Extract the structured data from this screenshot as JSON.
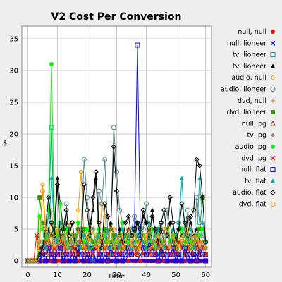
{
  "chart_data": {
    "type": "line",
    "title": "V2 Cost Per Conversion",
    "xlabel": "Time",
    "ylabel": "$",
    "xlim": [
      -2,
      62
    ],
    "ylim": [
      -1,
      37
    ],
    "xticks": [
      0,
      10,
      20,
      30,
      40,
      50,
      60
    ],
    "yticks": [
      0,
      5,
      10,
      15,
      20,
      25,
      30,
      35
    ],
    "grid": true,
    "legend": "right",
    "series": [
      {
        "name": "null, null",
        "color": "#ff0000",
        "marker": "filled-circle",
        "values": [
          0,
          0,
          0,
          0,
          0,
          0,
          0,
          0,
          0,
          0,
          0,
          0,
          0,
          0,
          0,
          0,
          0,
          0,
          0,
          0,
          0,
          0,
          0,
          0,
          0,
          0,
          0,
          0,
          0,
          0,
          0,
          0,
          0,
          0,
          0,
          0,
          0,
          0,
          0,
          0,
          0,
          0,
          0,
          0,
          0,
          0,
          0,
          0,
          0,
          0,
          0,
          0,
          0,
          0,
          0,
          0,
          0,
          0,
          0,
          0,
          0
        ]
      },
      {
        "name": "null, lioneer",
        "color": "#0000ff",
        "marker": "x",
        "values": [
          0,
          0,
          0,
          0,
          0,
          1,
          0,
          0,
          1,
          0,
          2,
          1,
          0,
          1,
          0,
          0,
          0,
          1,
          0,
          0,
          1,
          0,
          1,
          0,
          0,
          0,
          0,
          1,
          0,
          0,
          0,
          0,
          0,
          0,
          1,
          0,
          0,
          0,
          1,
          0,
          0,
          0,
          0,
          0,
          1,
          0,
          1,
          0,
          0,
          0,
          0,
          0,
          0,
          1,
          0,
          0,
          0,
          1,
          0,
          0,
          0
        ]
      },
      {
        "name": "tv, lioneer",
        "color": "#009999",
        "marker": "open-square",
        "values": [
          0,
          0,
          0,
          0,
          0,
          2,
          4,
          7,
          21,
          3,
          5,
          2,
          1,
          2,
          3,
          1,
          0,
          2,
          1,
          3,
          2,
          1,
          0,
          3,
          2,
          1,
          2,
          0,
          1,
          4,
          2,
          3,
          1,
          2,
          1,
          3,
          2,
          4,
          3,
          1,
          2,
          1,
          3,
          2,
          1,
          2,
          3,
          1,
          2,
          4,
          1,
          2,
          3,
          1,
          2,
          1,
          3,
          2,
          1,
          2,
          1
        ]
      },
      {
        "name": "tv, lioneer",
        "color": "#000000",
        "marker": "filled-triangle",
        "values": [
          0,
          0,
          0,
          0,
          1,
          3,
          2,
          5,
          4,
          6,
          13,
          9,
          5,
          6,
          3,
          4,
          2,
          1,
          4,
          5,
          3,
          6,
          8,
          13,
          4,
          2,
          5,
          3,
          6,
          4,
          2,
          5,
          3,
          4,
          5,
          2,
          3,
          6,
          4,
          7,
          6,
          3,
          8,
          4,
          2,
          5,
          3,
          4,
          6,
          3,
          2,
          5,
          4,
          3,
          7,
          6,
          4,
          5,
          3,
          2,
          3
        ]
      },
      {
        "name": "audio, null",
        "color": "#ff9900",
        "marker": "open-diamond",
        "values": [
          0,
          0,
          0,
          0,
          2,
          12,
          6,
          3,
          8,
          4,
          2,
          5,
          3,
          4,
          6,
          2,
          1,
          8,
          14,
          3,
          2,
          5,
          3,
          4,
          2,
          9,
          7,
          3,
          2,
          5,
          3,
          1,
          4,
          2,
          3,
          4,
          2,
          1,
          3,
          2,
          4,
          5,
          3,
          2,
          4,
          3,
          5,
          2,
          3,
          4,
          2,
          3,
          5,
          4,
          3,
          2,
          4,
          3,
          2,
          3,
          2
        ]
      },
      {
        "name": "audio, lioneer",
        "color": "#558888",
        "marker": "open-circle",
        "values": [
          0,
          0,
          0,
          0,
          1,
          3,
          2,
          8,
          6,
          4,
          3,
          5,
          2,
          9,
          4,
          6,
          3,
          2,
          5,
          16,
          10,
          5,
          3,
          2,
          11,
          9,
          16,
          4,
          5,
          21,
          14,
          8,
          6,
          3,
          4,
          5,
          7,
          6,
          3,
          5,
          9,
          4,
          3,
          2,
          5,
          6,
          4,
          8,
          3,
          2,
          4,
          6,
          5,
          4,
          8,
          3,
          2,
          10,
          6,
          4,
          3
        ]
      },
      {
        "name": "dvd, null",
        "color": "#ff7733",
        "marker": "plus",
        "values": [
          0,
          0,
          0,
          0,
          1,
          2,
          3,
          1,
          2,
          3,
          2,
          1,
          2,
          3,
          1,
          2,
          1,
          3,
          2,
          1,
          2,
          1,
          3,
          2,
          1,
          2,
          1,
          3,
          2,
          1,
          2,
          3,
          1,
          2,
          1,
          3,
          2,
          1,
          2,
          3,
          1,
          2,
          1,
          2,
          3,
          2,
          1,
          2,
          3,
          1,
          2,
          1,
          3,
          2,
          1,
          2,
          1,
          2,
          3,
          2,
          1
        ]
      },
      {
        "name": "dvd, lioneer",
        "color": "#339900",
        "marker": "filled-square",
        "values": [
          0,
          0,
          0,
          0,
          10,
          6,
          3,
          4,
          2,
          5,
          3,
          6,
          4,
          2,
          5,
          3,
          4,
          2,
          3,
          5,
          2,
          4,
          3,
          2,
          4,
          3,
          5,
          2,
          3,
          4,
          2,
          3,
          2,
          4,
          3,
          2,
          5,
          3,
          4,
          2,
          3,
          4,
          2,
          3,
          5,
          2,
          3,
          4,
          3,
          2,
          4,
          3,
          2,
          3,
          4,
          2,
          3,
          4,
          5,
          10,
          3
        ]
      },
      {
        "name": "null, pg",
        "color": "#993333",
        "marker": "open-triangle",
        "values": [
          0,
          0,
          0,
          0,
          1,
          2,
          1,
          3,
          2,
          1,
          2,
          3,
          1,
          2,
          1,
          2,
          3,
          1,
          2,
          1,
          3,
          2,
          1,
          2,
          1,
          3,
          2,
          1,
          2,
          3,
          1,
          2,
          1,
          2,
          3,
          1,
          2,
          1,
          3,
          2,
          1,
          2,
          3,
          1,
          2,
          1,
          3,
          2,
          1,
          2,
          3,
          1,
          2,
          1,
          2,
          3,
          1,
          2,
          1,
          2,
          1
        ]
      },
      {
        "name": "tv, pg",
        "color": "#888888",
        "marker": "filled-diamond",
        "values": [
          0,
          0,
          0,
          0,
          1,
          2,
          3,
          2,
          1,
          3,
          2,
          4,
          3,
          2,
          1,
          3,
          2,
          3,
          4,
          2,
          3,
          2,
          1,
          3,
          4,
          2,
          3,
          2,
          1,
          3,
          2,
          4,
          3,
          2,
          3,
          1,
          2,
          4,
          3,
          2,
          1,
          3,
          2,
          4,
          2,
          3,
          1,
          2,
          3,
          4,
          2,
          3,
          2,
          1,
          3,
          4,
          2,
          3,
          2,
          3,
          2
        ]
      },
      {
        "name": "audio, pg",
        "color": "#00ff00",
        "marker": "filled-circle",
        "values": [
          0,
          0,
          0,
          0,
          7,
          5,
          3,
          8,
          31,
          6,
          4,
          9,
          3,
          5,
          2,
          4,
          3,
          6,
          2,
          3,
          5,
          4,
          2,
          3,
          5,
          2,
          4,
          3,
          5,
          2,
          3,
          4,
          6,
          2,
          3,
          4,
          5,
          2,
          3,
          4,
          2,
          3,
          5,
          2,
          4,
          3,
          2,
          5,
          3,
          4,
          2,
          3,
          5,
          2,
          4,
          3,
          2,
          3,
          4,
          5,
          3
        ]
      },
      {
        "name": "dvd, pg",
        "color": "#ff0000",
        "marker": "x",
        "values": [
          0,
          0,
          0,
          4,
          2,
          1,
          3,
          2,
          1,
          2,
          1,
          2,
          3,
          1,
          2,
          1,
          2,
          1,
          3,
          2,
          1,
          2,
          1,
          2,
          1,
          3,
          2,
          1,
          2,
          1,
          2,
          1,
          3,
          2,
          1,
          2,
          1,
          2,
          3,
          1,
          2,
          1,
          2,
          1,
          3,
          2,
          1,
          2,
          1,
          2,
          1,
          3,
          2,
          1,
          2,
          1,
          2,
          3,
          1,
          2,
          1
        ]
      },
      {
        "name": "null, flat",
        "color": "#0000ff",
        "marker": "open-square",
        "values": [
          0,
          0,
          0,
          0,
          0,
          1,
          0,
          2,
          1,
          0,
          1,
          2,
          0,
          1,
          0,
          1,
          0,
          2,
          1,
          0,
          1,
          0,
          2,
          0,
          1,
          0,
          1,
          0,
          2,
          1,
          0,
          1,
          0,
          1,
          2,
          1,
          5,
          34,
          4,
          2,
          1,
          3,
          2,
          1,
          0,
          2,
          1,
          0,
          1,
          2,
          0,
          1,
          0,
          2,
          1,
          0,
          1,
          0,
          2,
          1,
          0
        ]
      },
      {
        "name": "tv, flat",
        "color": "#00aaaa",
        "marker": "filled-triangle",
        "values": [
          0,
          0,
          0,
          0,
          1,
          3,
          2,
          4,
          13,
          5,
          3,
          6,
          4,
          3,
          2,
          4,
          3,
          5,
          2,
          4,
          3,
          2,
          5,
          3,
          4,
          2,
          3,
          5,
          2,
          3,
          4,
          2,
          5,
          3,
          4,
          2,
          3,
          4,
          5,
          3,
          2,
          6,
          3,
          4,
          5,
          3,
          2,
          4,
          3,
          5,
          4,
          6,
          13,
          4,
          3,
          5,
          2,
          4,
          13,
          6,
          3
        ]
      },
      {
        "name": "audio, flat",
        "color": "#000000",
        "marker": "open-diamond",
        "values": [
          0,
          0,
          0,
          0,
          1,
          2,
          5,
          10,
          6,
          4,
          12,
          3,
          5,
          8,
          4,
          6,
          2,
          5,
          3,
          12,
          8,
          4,
          10,
          14,
          6,
          2,
          9,
          7,
          5,
          18,
          11,
          4,
          3,
          6,
          7,
          4,
          5,
          6,
          5,
          8,
          6,
          4,
          7,
          5,
          3,
          6,
          8,
          4,
          10,
          6,
          3,
          5,
          9,
          6,
          4,
          7,
          8,
          16,
          15,
          10,
          3
        ]
      },
      {
        "name": "dvd, flat",
        "color": "#ff9900",
        "marker": "open-circle",
        "values": [
          0,
          0,
          0,
          0,
          3,
          11,
          5,
          3,
          4,
          2,
          5,
          3,
          4,
          2,
          3,
          4,
          2,
          5,
          3,
          2,
          4,
          3,
          5,
          2,
          3,
          4,
          2,
          3,
          5,
          2,
          3,
          4,
          2,
          3,
          5,
          2,
          4,
          3,
          2,
          4,
          3,
          5,
          2,
          3,
          4,
          2,
          3,
          5,
          2,
          4,
          3,
          2,
          4,
          3,
          5,
          2,
          3,
          4,
          2,
          3,
          2
        ]
      }
    ],
    "legend_labels": [
      "null, null",
      "null, lioneer",
      "tv, lioneer",
      "tv, lioneer",
      "audio, null",
      "audio, lioneer",
      "dvd, null",
      "dvd, lioneer",
      "null, pg",
      "tv, pg",
      "audio, pg",
      "dvd, pg",
      "null, flat",
      "tv, flat",
      "audio, flat",
      "dvd, flat"
    ]
  }
}
